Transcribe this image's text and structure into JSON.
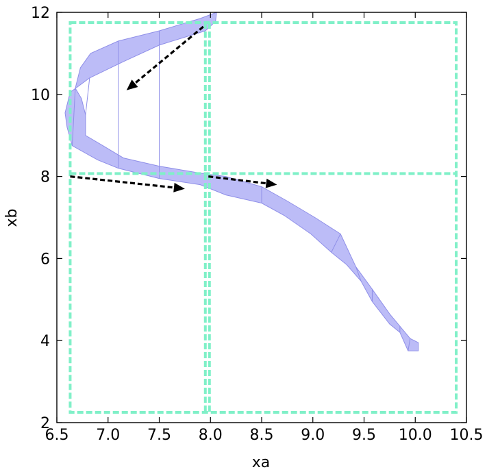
{
  "chart_data": {
    "type": "area",
    "title": "",
    "xlabel": "xa",
    "ylabel": "xb",
    "xlim": [
      6.5,
      10.5
    ],
    "ylim": [
      2,
      12
    ],
    "xticks": [
      6.5,
      7.0,
      7.5,
      8.0,
      8.5,
      9.0,
      9.5,
      10.0,
      10.5
    ],
    "xtick_labels": [
      "6.5",
      "7.0",
      "7.5",
      "8.0",
      "8.5",
      "9.0",
      "9.5",
      "10.0",
      "10.5"
    ],
    "yticks": [
      2,
      4,
      6,
      8,
      10,
      12
    ],
    "ytick_labels": [
      "2",
      "4",
      "6",
      "8",
      "10",
      "12"
    ],
    "grid": false,
    "band": {
      "color": "#bcbcf7",
      "edge_color": "#8f8fe8",
      "upper": [
        [
          8.06,
          12.0
        ],
        [
          7.9,
          11.85
        ],
        [
          7.5,
          11.55
        ],
        [
          7.1,
          11.3
        ],
        [
          6.83,
          11.0
        ],
        [
          6.73,
          10.65
        ],
        [
          6.68,
          10.15
        ],
        [
          6.74,
          9.9
        ],
        [
          6.78,
          9.5
        ],
        [
          6.78,
          9.0
        ],
        [
          6.95,
          8.75
        ],
        [
          7.15,
          8.45
        ],
        [
          7.5,
          8.25
        ],
        [
          7.9,
          8.08
        ],
        [
          8.15,
          8.0
        ],
        [
          8.5,
          7.75
        ],
        [
          8.75,
          7.4
        ],
        [
          9.02,
          7.0
        ],
        [
          9.27,
          6.6
        ],
        [
          9.42,
          5.8
        ],
        [
          9.58,
          5.25
        ],
        [
          9.75,
          4.65
        ],
        [
          9.85,
          4.35
        ],
        [
          9.95,
          4.05
        ],
        [
          10.03,
          3.95
        ]
      ],
      "lower": [
        [
          10.03,
          3.75
        ],
        [
          9.93,
          3.75
        ],
        [
          9.85,
          4.2
        ],
        [
          9.75,
          4.4
        ],
        [
          9.58,
          4.95
        ],
        [
          9.47,
          5.45
        ],
        [
          9.33,
          5.85
        ],
        [
          9.18,
          6.15
        ],
        [
          8.98,
          6.6
        ],
        [
          8.72,
          7.05
        ],
        [
          8.5,
          7.35
        ],
        [
          8.15,
          7.55
        ],
        [
          7.9,
          7.8
        ],
        [
          7.5,
          7.95
        ],
        [
          7.1,
          8.2
        ],
        [
          6.9,
          8.4
        ],
        [
          6.65,
          8.75
        ],
        [
          6.6,
          9.2
        ],
        [
          6.58,
          9.55
        ],
        [
          6.63,
          10.05
        ],
        [
          6.82,
          10.4
        ],
        [
          7.15,
          10.8
        ],
        [
          7.5,
          11.2
        ],
        [
          7.95,
          11.55
        ],
        [
          8.05,
          11.78
        ]
      ],
      "segment_ticks": [
        7.4,
        6.8,
        6.7,
        7.05,
        8.5,
        9.25,
        9.4,
        9.55,
        9.65,
        9.85,
        9.95
      ]
    },
    "boxes": {
      "color": "#80f0c8",
      "x_bounds": [
        6.63,
        7.98,
        10.4
      ],
      "y_bounds": [
        2.25,
        8.07,
        11.75
      ],
      "divider_x": 7.95,
      "divider_y": 8.07
    },
    "arrows": [
      {
        "from": [
          7.93,
          11.65
        ],
        "to": [
          7.18,
          10.1
        ]
      },
      {
        "from": [
          6.63,
          8.0
        ],
        "to": [
          7.75,
          7.7
        ]
      },
      {
        "from": [
          7.98,
          8.0
        ],
        "to": [
          8.65,
          7.8
        ]
      }
    ]
  }
}
